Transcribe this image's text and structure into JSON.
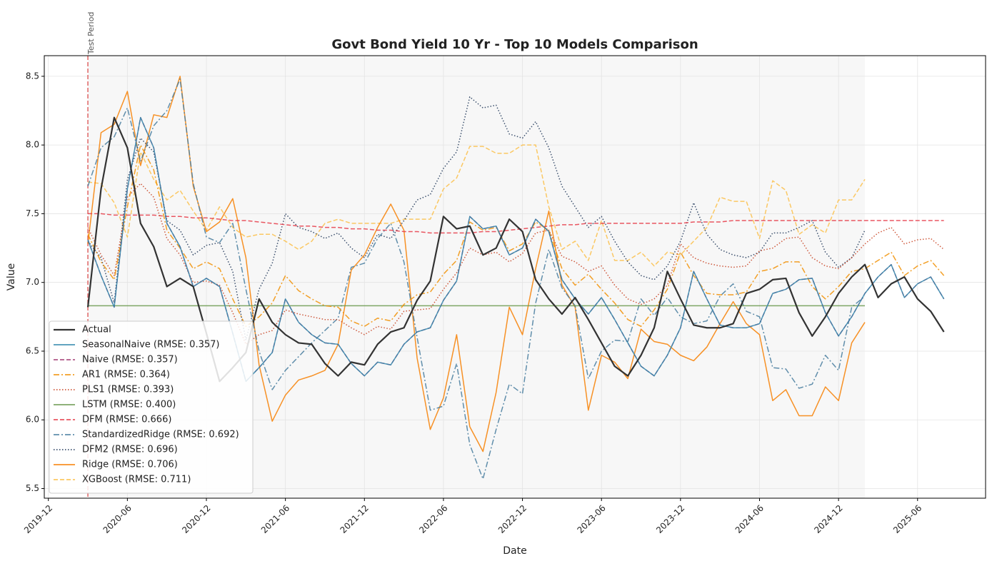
{
  "chart_data": {
    "type": "line",
    "title": "Govt Bond Yield 10 Yr - Top 10 Models Comparison",
    "x_label": "Date",
    "y_label": "Value",
    "x": [
      "2020-03",
      "2020-04",
      "2020-05",
      "2020-06",
      "2020-07",
      "2020-08",
      "2020-09",
      "2020-10",
      "2020-11",
      "2020-12",
      "2021-01",
      "2021-02",
      "2021-03",
      "2021-04",
      "2021-05",
      "2021-06",
      "2021-07",
      "2021-08",
      "2021-09",
      "2021-10",
      "2021-11",
      "2021-12",
      "2022-01",
      "2022-02",
      "2022-03",
      "2022-04",
      "2022-05",
      "2022-06",
      "2022-07",
      "2022-08",
      "2022-09",
      "2022-10",
      "2022-11",
      "2022-12",
      "2023-01",
      "2023-02",
      "2023-03",
      "2023-04",
      "2023-05",
      "2023-06",
      "2023-07",
      "2023-08",
      "2023-09",
      "2023-10",
      "2023-11",
      "2023-12",
      "2024-01",
      "2024-02",
      "2024-03",
      "2024-04",
      "2024-05",
      "2024-06",
      "2024-07",
      "2024-08",
      "2024-09",
      "2024-10",
      "2024-11",
      "2024-12",
      "2025-01",
      "2025-02",
      "2025-03",
      "2025-04",
      "2025-05",
      "2025-06",
      "2025-07",
      "2025-08"
    ],
    "xlim": [
      "2019-11-22",
      "2025-11-06"
    ],
    "xticks": [
      "2019-12",
      "2020-06",
      "2020-12",
      "2021-06",
      "2021-12",
      "2022-06",
      "2022-12",
      "2023-06",
      "2023-12",
      "2024-06",
      "2024-12",
      "2025-06"
    ],
    "ylim": [
      5.43,
      8.65
    ],
    "yticks": [
      5.5,
      {
        "value": 6,
        "label": "6.0"
      },
      6.5,
      {
        "value": 7,
        "label": "7.0"
      },
      7.5,
      {
        "value": 8,
        "label": "8.0"
      },
      8.5
    ],
    "grid": true,
    "legend": "lower left",
    "shaded_region": [
      "2020-03",
      "2025-02"
    ],
    "annotations": [
      {
        "text": "Test Period",
        "x": "2020-03",
        "color": "#e06666"
      }
    ],
    "series": [
      {
        "name": "Actual",
        "color": "#333333",
        "dash": "solid",
        "width": 2.2,
        "values": [
          6.82,
          7.68,
          8.2,
          7.98,
          7.43,
          7.26,
          6.97,
          7.03,
          6.97,
          6.63,
          6.28,
          6.38,
          6.49,
          6.88,
          6.71,
          6.62,
          6.56,
          6.55,
          6.41,
          6.32,
          6.42,
          6.4,
          6.55,
          6.64,
          6.67,
          6.87,
          7.01,
          7.48,
          7.39,
          7.41,
          7.2,
          7.25,
          7.46,
          7.37,
          7.02,
          6.88,
          6.77,
          6.89,
          6.73,
          6.56,
          6.39,
          6.32,
          6.47,
          6.67,
          7.08,
          6.88,
          6.69,
          6.67,
          6.67,
          6.7,
          6.92,
          6.95,
          7.02,
          7.03,
          6.78,
          6.61,
          6.75,
          6.92,
          7.04,
          7.13,
          6.89,
          6.99,
          7.04,
          6.88,
          6.79,
          6.64
        ]
      },
      {
        "name": "SeasonalNaive (RMSE: 0.357)",
        "color": "#2E86AB",
        "dash": "solid",
        "width": 1.5,
        "values": [
          7.31,
          7.05,
          6.82,
          7.68,
          8.2,
          7.98,
          7.43,
          7.26,
          6.97,
          7.03,
          6.97,
          6.63,
          6.28,
          6.38,
          6.49,
          6.88,
          6.71,
          6.62,
          6.56,
          6.55,
          6.41,
          6.32,
          6.42,
          6.4,
          6.55,
          6.64,
          6.67,
          6.87,
          7.01,
          7.48,
          7.39,
          7.41,
          7.2,
          7.25,
          7.46,
          7.37,
          7.02,
          6.88,
          6.77,
          6.89,
          6.73,
          6.56,
          6.39,
          6.32,
          6.47,
          6.67,
          7.08,
          6.88,
          6.69,
          6.67,
          6.67,
          6.7,
          6.92,
          6.95,
          7.02,
          7.03,
          6.78,
          6.61,
          6.75,
          6.92,
          7.04,
          7.13,
          6.89,
          6.99,
          7.04,
          6.88
        ]
      },
      {
        "name": "Naive (RMSE: 0.357)",
        "color": "#A23B72",
        "dash": "dashed",
        "width": 1.5,
        "values": [
          7.31,
          7.05,
          6.82,
          7.68,
          8.2,
          7.98,
          7.43,
          7.26,
          6.97,
          7.03,
          6.97,
          6.63,
          6.28,
          6.38,
          6.49,
          6.88,
          6.71,
          6.62,
          6.56,
          6.55,
          6.41,
          6.32,
          6.42,
          6.4,
          6.55,
          6.64,
          6.67,
          6.87,
          7.01,
          7.48,
          7.39,
          7.41,
          7.2,
          7.25,
          7.46,
          7.37,
          7.02,
          6.88,
          6.77,
          6.89,
          6.73,
          6.56,
          6.39,
          6.32,
          6.47,
          6.67,
          7.08,
          6.88,
          6.69,
          6.67,
          6.67,
          6.7,
          6.92,
          6.95,
          7.02,
          7.03,
          6.78,
          6.61,
          6.75,
          6.92,
          7.04,
          7.13,
          6.89,
          6.99,
          7.04,
          6.88
        ]
      },
      {
        "name": "AR1 (RMSE: 0.364)",
        "color": "#F18F01",
        "dash": "dashdot",
        "width": 1.5,
        "values": [
          7.35,
          7.15,
          7.02,
          7.55,
          8.0,
          7.82,
          7.38,
          7.25,
          7.1,
          7.15,
          7.1,
          6.88,
          6.68,
          6.75,
          6.85,
          7.05,
          6.94,
          6.88,
          6.83,
          6.82,
          6.72,
          6.68,
          6.74,
          6.72,
          6.84,
          6.91,
          6.93,
          7.06,
          7.16,
          7.44,
          7.38,
          7.4,
          7.23,
          7.28,
          7.44,
          7.38,
          7.1,
          6.98,
          7.06,
          6.95,
          6.85,
          6.73,
          6.68,
          6.8,
          6.95,
          7.22,
          7.05,
          6.92,
          6.91,
          6.91,
          6.93,
          7.08,
          7.1,
          7.15,
          7.15,
          6.97,
          6.88,
          6.97,
          7.08,
          7.1,
          7.16,
          7.22,
          7.05,
          7.12,
          7.16,
          7.05
        ]
      },
      {
        "name": "PLS1 (RMSE: 0.393)",
        "color": "#C73E1D",
        "dash": "dotted",
        "width": 1.5,
        "values": [
          7.4,
          7.2,
          7.05,
          7.62,
          7.72,
          7.62,
          7.32,
          7.2,
          7.0,
          7.01,
          6.98,
          6.78,
          6.55,
          6.62,
          6.65,
          6.8,
          6.77,
          6.75,
          6.73,
          6.73,
          6.67,
          6.62,
          6.68,
          6.66,
          6.79,
          6.8,
          6.81,
          6.95,
          7.07,
          7.25,
          7.2,
          7.22,
          7.15,
          7.21,
          7.36,
          7.38,
          7.19,
          7.15,
          7.08,
          7.12,
          6.98,
          6.88,
          6.84,
          6.88,
          6.98,
          7.28,
          7.18,
          7.14,
          7.12,
          7.11,
          7.12,
          7.23,
          7.25,
          7.32,
          7.33,
          7.18,
          7.12,
          7.1,
          7.18,
          7.28,
          7.36,
          7.4,
          7.28,
          7.31,
          7.32,
          7.24
        ]
      },
      {
        "name": "LSTM (RMSE: 0.400)",
        "color": "#6A994E",
        "dash": "solid",
        "width": 1.5,
        "values": [
          6.83,
          6.83,
          6.83,
          6.83,
          6.83,
          6.83,
          6.83,
          6.83,
          6.83,
          6.83,
          6.83,
          6.83,
          6.83,
          6.83,
          6.83,
          6.83,
          6.83,
          6.83,
          6.83,
          6.83,
          6.83,
          6.83,
          6.83,
          6.83,
          6.83,
          6.83,
          6.83,
          6.83,
          6.83,
          6.83,
          6.83,
          6.83,
          6.83,
          6.83,
          6.83,
          6.83,
          6.83,
          6.83,
          6.83,
          6.83,
          6.83,
          6.83,
          6.83,
          6.83,
          6.83,
          6.83,
          6.83,
          6.83,
          6.83,
          6.83,
          6.83,
          6.83,
          6.83,
          6.83,
          6.83,
          6.83,
          6.83,
          6.83,
          6.83,
          6.83,
          null,
          null,
          null,
          null,
          null,
          null
        ]
      },
      {
        "name": "DFM (RMSE: 0.666)",
        "color": "#E63946",
        "dash": "dashed",
        "width": 1.5,
        "values": [
          7.5,
          7.5,
          7.49,
          7.49,
          7.49,
          7.49,
          7.48,
          7.48,
          7.47,
          7.47,
          7.46,
          7.45,
          7.45,
          7.44,
          7.43,
          7.42,
          7.41,
          7.41,
          7.4,
          7.4,
          7.39,
          7.39,
          7.38,
          7.38,
          7.37,
          7.37,
          7.36,
          7.36,
          7.36,
          7.36,
          7.37,
          7.37,
          7.38,
          7.39,
          7.4,
          7.41,
          7.42,
          7.42,
          7.43,
          7.43,
          7.43,
          7.43,
          7.43,
          7.43,
          7.43,
          7.43,
          7.44,
          7.44,
          7.44,
          7.45,
          7.45,
          7.45,
          7.45,
          7.45,
          7.45,
          7.45,
          7.45,
          7.45,
          7.45,
          7.45,
          7.45,
          7.45,
          7.45,
          7.45,
          7.45,
          7.45
        ]
      },
      {
        "name": "StandardizedRidge (RMSE: 0.692)",
        "color": "#457B9D",
        "dash": "dashdot",
        "width": 1.5,
        "values": [
          7.7,
          7.98,
          8.06,
          8.27,
          7.88,
          8.14,
          8.25,
          8.48,
          7.72,
          7.33,
          7.29,
          7.43,
          6.95,
          6.5,
          6.22,
          6.36,
          6.46,
          6.56,
          6.65,
          6.74,
          7.11,
          7.14,
          7.32,
          7.43,
          7.15,
          6.6,
          6.07,
          6.1,
          6.41,
          5.82,
          5.57,
          5.93,
          6.26,
          6.19,
          6.85,
          7.24,
          6.96,
          6.83,
          6.3,
          6.5,
          6.58,
          6.57,
          6.88,
          6.76,
          6.89,
          6.75,
          6.7,
          6.72,
          6.9,
          6.99,
          6.79,
          6.75,
          6.38,
          6.37,
          6.23,
          6.26,
          6.47,
          6.36,
          6.82,
          6.9,
          null,
          null,
          null,
          null,
          null,
          null
        ]
      },
      {
        "name": "DFM2 (RMSE: 0.696)",
        "color": "#1D3557",
        "dash": "dotted",
        "width": 1.5,
        "values": [
          7.3,
          7.18,
          6.85,
          7.75,
          8.05,
          7.95,
          7.45,
          7.38,
          7.2,
          7.27,
          7.29,
          7.08,
          6.58,
          6.95,
          7.14,
          7.5,
          7.4,
          7.37,
          7.32,
          7.36,
          7.25,
          7.18,
          7.35,
          7.32,
          7.45,
          7.6,
          7.64,
          7.83,
          7.95,
          8.35,
          8.27,
          8.29,
          8.08,
          8.05,
          8.17,
          7.98,
          7.7,
          7.55,
          7.4,
          7.48,
          7.3,
          7.15,
          7.05,
          7.02,
          7.12,
          7.3,
          7.58,
          7.35,
          7.24,
          7.2,
          7.18,
          7.22,
          7.36,
          7.36,
          7.4,
          7.45,
          7.22,
          7.11,
          7.18,
          7.38,
          null,
          null,
          null,
          null,
          null,
          null
        ]
      },
      {
        "name": "Ridge (RMSE: 0.706)",
        "color": "#F77F00",
        "dash": "solid",
        "width": 1.5,
        "values": [
          7.28,
          8.09,
          8.15,
          8.39,
          7.85,
          8.22,
          8.2,
          8.5,
          7.7,
          7.37,
          7.44,
          7.61,
          7.18,
          6.4,
          5.99,
          6.18,
          6.29,
          6.32,
          6.36,
          6.55,
          7.09,
          7.2,
          7.4,
          7.57,
          7.38,
          6.45,
          5.93,
          6.16,
          6.62,
          5.95,
          5.77,
          6.2,
          6.82,
          6.62,
          7.1,
          7.52,
          6.98,
          6.82,
          6.07,
          6.47,
          6.42,
          6.3,
          6.66,
          6.57,
          6.55,
          6.47,
          6.43,
          6.53,
          6.7,
          6.86,
          6.7,
          6.62,
          6.14,
          6.22,
          6.03,
          6.03,
          6.24,
          6.14,
          6.56,
          6.71,
          null,
          null,
          null,
          null,
          null,
          null
        ]
      },
      {
        "name": "XGBoost (RMSE: 0.711)",
        "color": "#FCBF49",
        "dash": "dashed",
        "width": 1.5,
        "values": [
          7.73,
          7.72,
          7.58,
          7.33,
          7.95,
          7.75,
          7.6,
          7.67,
          7.52,
          7.38,
          7.55,
          7.4,
          7.33,
          7.35,
          7.35,
          7.3,
          7.24,
          7.3,
          7.43,
          7.46,
          7.43,
          7.43,
          7.43,
          7.43,
          7.46,
          7.46,
          7.46,
          7.68,
          7.76,
          7.99,
          7.99,
          7.94,
          7.94,
          8.0,
          8.0,
          7.55,
          7.24,
          7.3,
          7.16,
          7.45,
          7.16,
          7.16,
          7.22,
          7.12,
          7.22,
          7.2,
          7.3,
          7.4,
          7.62,
          7.59,
          7.59,
          7.32,
          7.74,
          7.67,
          7.35,
          7.42,
          7.36,
          7.6,
          7.6,
          7.75,
          null,
          null,
          null,
          null,
          null,
          null
        ]
      }
    ]
  }
}
